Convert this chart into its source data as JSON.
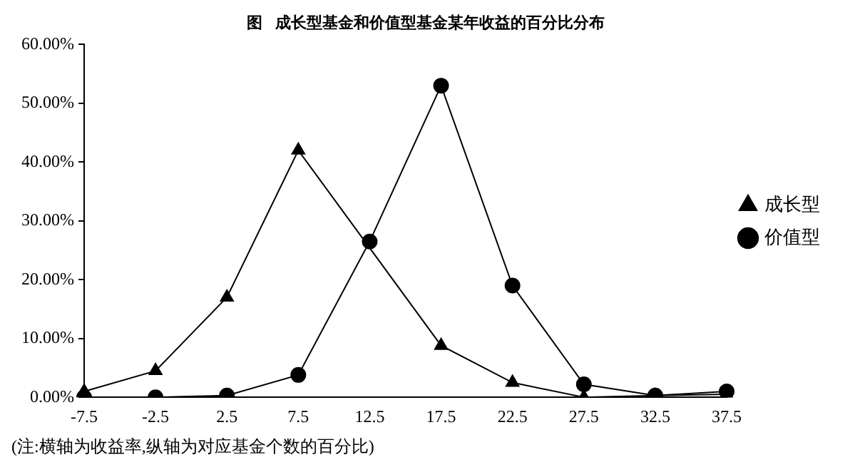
{
  "chart_data": {
    "type": "line",
    "title": "图   成长型基金和价值型基金某年收益的百分比分布",
    "categories": [
      "-7.5",
      "-2.5",
      "2.5",
      "7.5",
      "12.5",
      "17.5",
      "22.5",
      "27.5",
      "32.5",
      "37.5"
    ],
    "series": [
      {
        "name": "成长型",
        "color": "#000000",
        "marker": "triangle",
        "values": [
          1.0,
          4.5,
          17,
          42,
          null,
          8.8,
          2.5,
          0,
          0.3,
          0.5
        ]
      },
      {
        "name": "价值型",
        "color": "#000000",
        "marker": "circle",
        "values": [
          0,
          0,
          0.3,
          3.8,
          26.5,
          53,
          19,
          2.2,
          0.3,
          1.0
        ]
      }
    ],
    "ylim": [
      0,
      60
    ],
    "yticks": [
      {
        "value": 0,
        "label": "0.00%"
      },
      {
        "value": 10,
        "label": "10.00%"
      },
      {
        "value": 20,
        "label": "20.00%"
      },
      {
        "value": 30,
        "label": "30.00%"
      },
      {
        "value": 40,
        "label": "40.00%"
      },
      {
        "value": 50,
        "label": "50.00%"
      },
      {
        "value": 60,
        "label": "60.00%"
      }
    ],
    "grid": false,
    "legend": "right",
    "annotations": [
      "(注:横轴为收益率,纵轴为对应基金个数的百分比)"
    ]
  }
}
